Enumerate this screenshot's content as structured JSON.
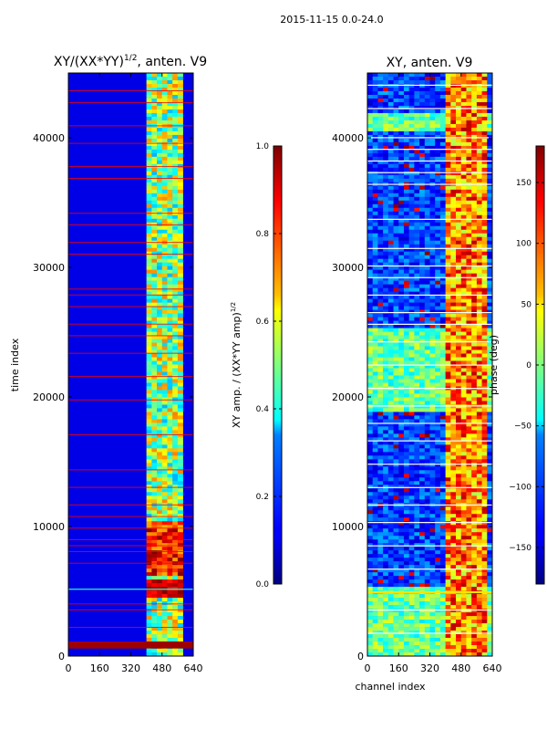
{
  "suptitle": "2015-11-15 0.0-24.0",
  "chart_data": [
    {
      "type": "heatmap",
      "title": "XY/(XX*YY)^1/2, anten. V9",
      "title_main": "XY/(XX*YY)",
      "title_exp": "1/2",
      "title_tail": ", anten. V9",
      "xlabel": "",
      "ylabel": "time index",
      "xlim": [
        0,
        640
      ],
      "ylim": [
        0,
        45000
      ],
      "xticks": [
        0,
        160,
        320,
        480,
        640
      ],
      "yticks": [
        0,
        10000,
        20000,
        30000,
        40000
      ],
      "colormap": "jet",
      "colorbar": {
        "label": "XY amp. / (XX*YY amp)^1/2",
        "label_main": "XY amp. / (XX*YY amp)",
        "label_exp": "1/2",
        "range": [
          0.0,
          1.0
        ],
        "ticks": [
          "0.0",
          "0.2",
          "0.4",
          "0.6",
          "0.8",
          "1.0"
        ]
      }
    },
    {
      "type": "heatmap",
      "title": "XY, anten. V9",
      "xlabel": "channel index",
      "ylabel": "",
      "xlim": [
        0,
        640
      ],
      "ylim": [
        0,
        45000
      ],
      "xticks": [
        0,
        160,
        320,
        480,
        640
      ],
      "yticks": [
        0,
        10000,
        20000,
        30000,
        40000
      ],
      "colormap": "jet",
      "colorbar": {
        "label": "phase (deg)",
        "range": [
          -180,
          180
        ],
        "ticks": [
          "−150",
          "−100",
          "−50",
          "0",
          "50",
          "100",
          "150"
        ]
      }
    }
  ],
  "colors": {
    "jet_dark_blue": "#00007f",
    "jet_blue": "#0000ff",
    "jet_cyan": "#00ffff",
    "jet_yellow": "#ffff00",
    "jet_red": "#ff0000",
    "jet_dark_red": "#7f0000"
  }
}
